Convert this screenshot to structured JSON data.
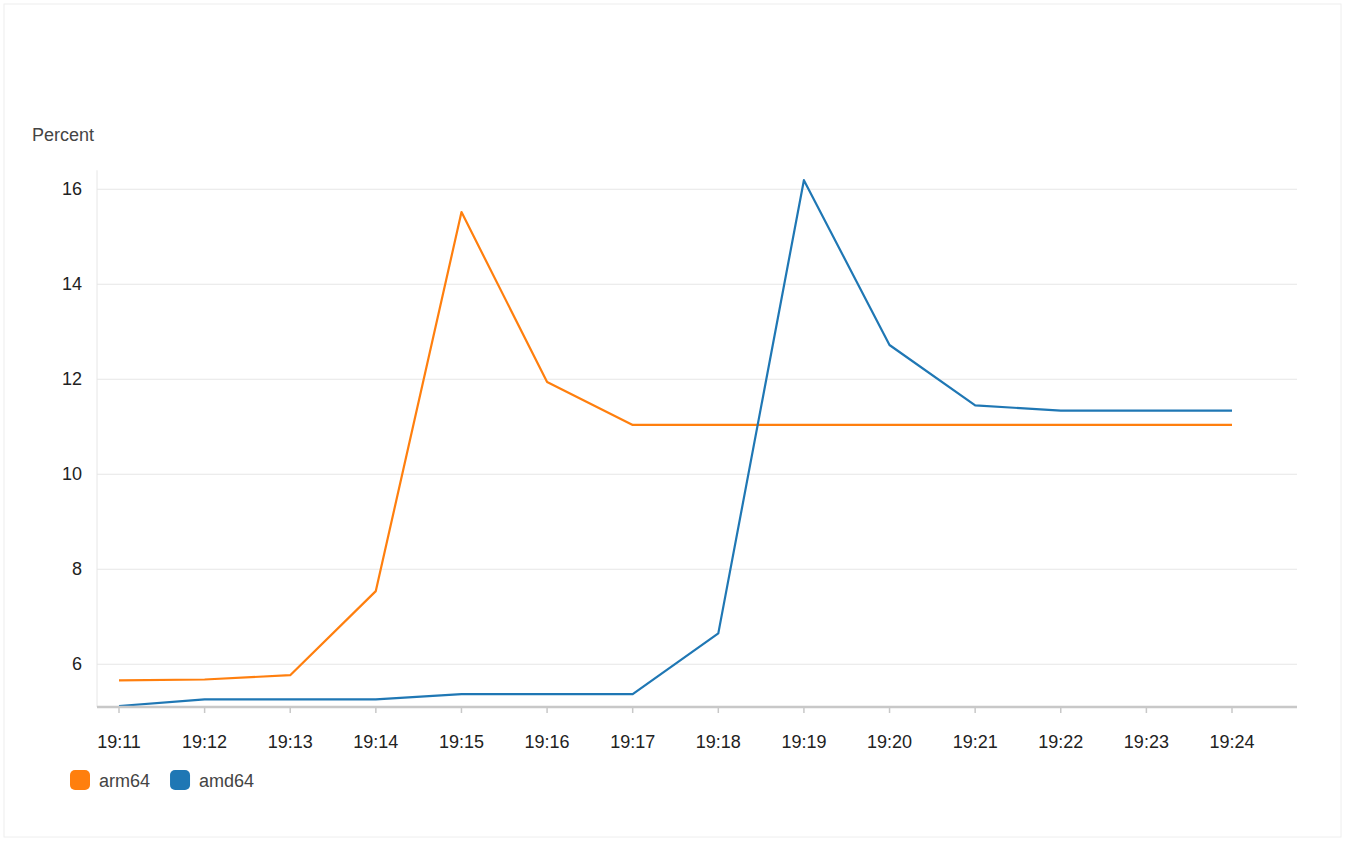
{
  "chart_data": {
    "type": "line",
    "y_label": "Percent",
    "categories": [
      "19:11",
      "19:12",
      "19:13",
      "19:14",
      "19:15",
      "19:16",
      "19:17",
      "19:18",
      "19:19",
      "19:20",
      "19:21",
      "19:22",
      "19:23",
      "19:24"
    ],
    "series": [
      {
        "name": "arm64",
        "color": "#ff7f0e",
        "values": [
          5.66,
          5.68,
          5.77,
          7.54,
          15.52,
          11.94,
          11.04,
          11.04,
          11.04,
          11.04,
          11.04,
          11.04,
          11.04,
          11.04
        ]
      },
      {
        "name": "amd64",
        "color": "#1f77b4",
        "values": [
          5.12,
          5.26,
          5.26,
          5.26,
          5.37,
          5.37,
          5.37,
          6.65,
          16.19,
          12.72,
          11.45,
          11.34,
          11.34,
          11.34
        ]
      }
    ],
    "ylim": [
      5.1,
      16.4
    ],
    "yticks": [
      6,
      8,
      10,
      12,
      14,
      16
    ],
    "grid": true,
    "legend": "bottom"
  }
}
